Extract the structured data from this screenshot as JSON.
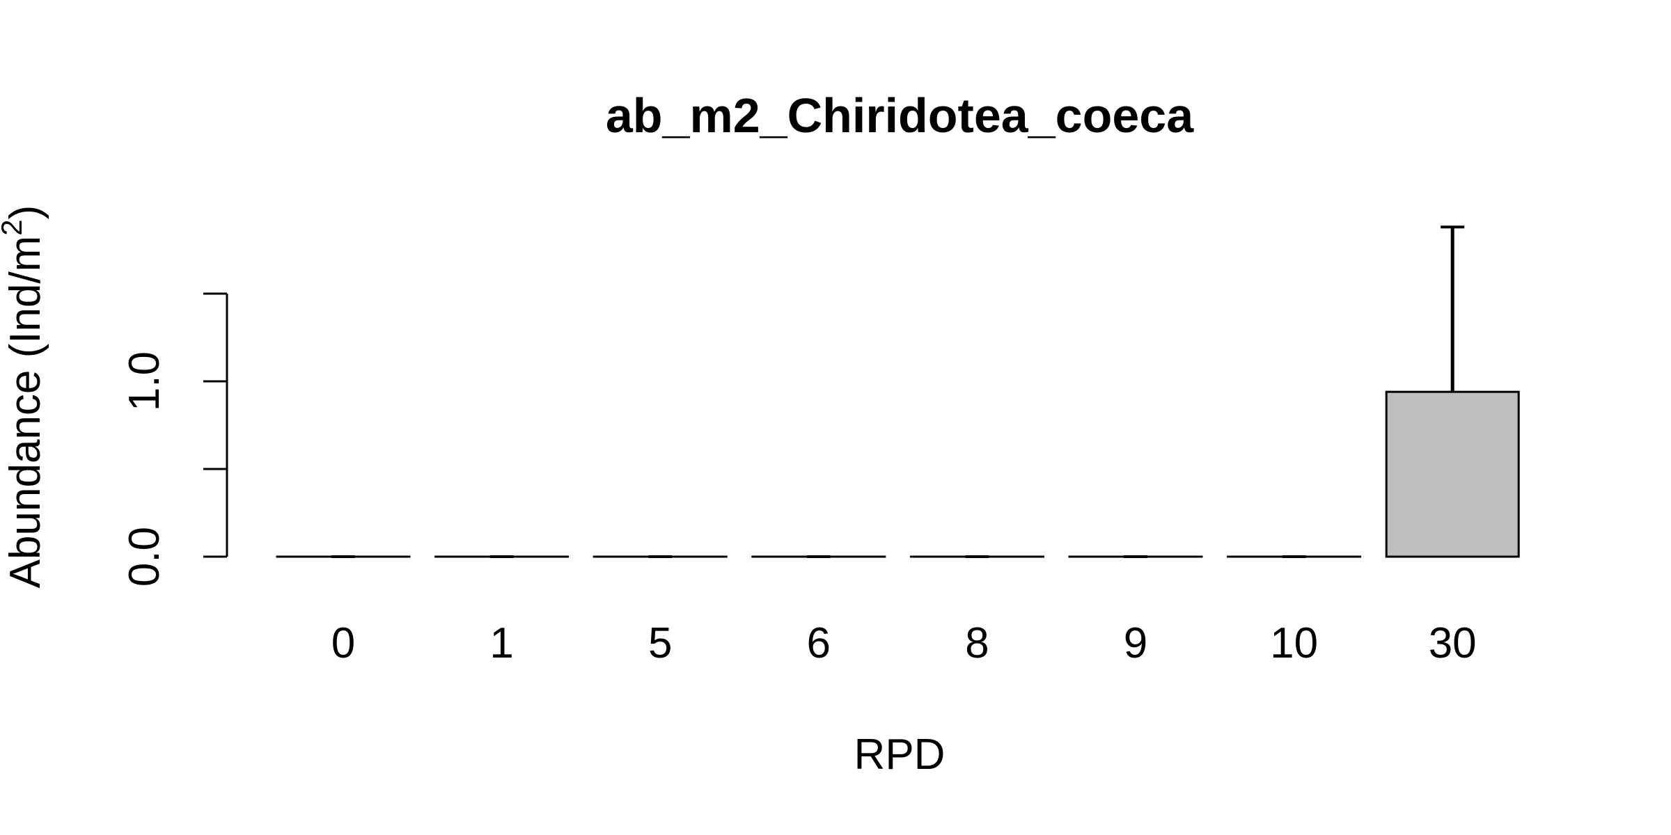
{
  "chart_data": {
    "type": "bar",
    "title": "ab_m2_Chiridotea_coeca",
    "xlabel": "RPD",
    "ylabel": {
      "text": "Abundance (Ind/m",
      "superscript": "2",
      "suffix": ")"
    },
    "categories": [
      "0",
      "1",
      "5",
      "6",
      "8",
      "9",
      "10",
      "30"
    ],
    "values": [
      0,
      0,
      0,
      0,
      0,
      0,
      0,
      0.94
    ],
    "error_upper": [
      0,
      0,
      0,
      0,
      0,
      0,
      0,
      1.88
    ],
    "ylim": [
      0,
      1.5
    ],
    "yticks": [
      0,
      0.5,
      1.0,
      1.5
    ],
    "ytick_labels": [
      "0.0",
      "",
      "1.0",
      ""
    ],
    "grid": false,
    "bar_color": "#bebebe",
    "edge_color": "#000000"
  }
}
